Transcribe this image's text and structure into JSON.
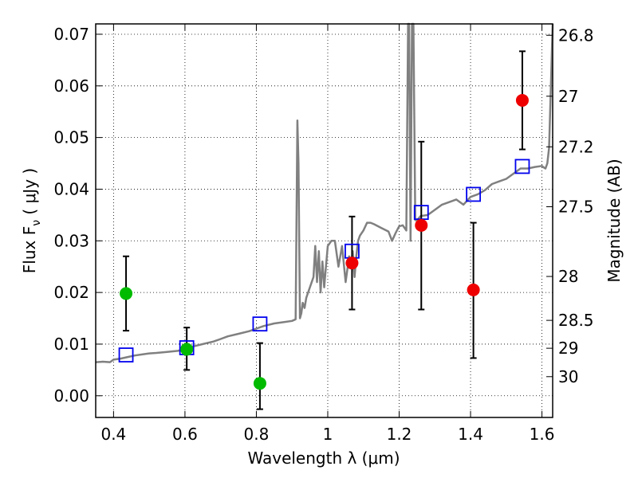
{
  "chart_data": {
    "type": "scatter",
    "xlabel": "Wavelength  λ (μm)",
    "ylabel": "Flux  F",
    "ylabel_sub": "ν",
    "ylabel_unit": "  ( μJy )",
    "y2label": "Magnitude (AB)",
    "xlim": [
      0.35,
      1.63
    ],
    "ylim": [
      -0.0042,
      0.072
    ],
    "grid": true,
    "x_ticks": [
      0.4,
      0.6,
      0.8,
      1.0,
      1.2,
      1.4,
      1.6
    ],
    "x_tick_labels": [
      "0.4",
      "0.6",
      "0.8",
      "1",
      "1.2",
      "1.4",
      "1.6"
    ],
    "y_ticks": [
      0.0,
      0.01,
      0.02,
      0.03,
      0.04,
      0.05,
      0.06,
      0.07
    ],
    "y_tick_labels": [
      "0.00",
      "0.01",
      "0.02",
      "0.03",
      "0.04",
      "0.05",
      "0.06",
      "0.07"
    ],
    "y2_ticks": [
      {
        "label": "26.8",
        "flux": 0.0698
      },
      {
        "label": "27",
        "flux": 0.058
      },
      {
        "label": "27.2",
        "flux": 0.0482
      },
      {
        "label": "27.5",
        "flux": 0.0366
      },
      {
        "label": "28",
        "flux": 0.0231
      },
      {
        "label": "28.5",
        "flux": 0.0146
      },
      {
        "label": "29",
        "flux": 0.0092
      },
      {
        "label": "30",
        "flux": 0.0037
      }
    ],
    "colors": {
      "model": "#808080",
      "green": "#00bb00",
      "red": "#ee0000",
      "model_photometry": "#0000ee",
      "errorbar": "#000000"
    },
    "series": [
      {
        "name": "model_spectrum",
        "style": "line",
        "x": [
          0.35,
          0.37,
          0.39,
          0.4,
          0.42,
          0.44,
          0.46,
          0.48,
          0.5,
          0.52,
          0.55,
          0.58,
          0.6,
          0.62,
          0.65,
          0.68,
          0.7,
          0.72,
          0.75,
          0.78,
          0.8,
          0.82,
          0.85,
          0.88,
          0.9,
          0.91,
          0.915,
          0.918,
          0.922,
          0.926,
          0.93,
          0.935,
          0.94,
          0.95,
          0.96,
          0.965,
          0.97,
          0.975,
          0.98,
          0.985,
          0.99,
          0.995,
          1.0,
          1.01,
          1.02,
          1.03,
          1.04,
          1.05,
          1.06,
          1.065,
          1.07,
          1.075,
          1.08,
          1.085,
          1.09,
          1.1,
          1.11,
          1.12,
          1.13,
          1.15,
          1.17,
          1.18,
          1.19,
          1.2,
          1.21,
          1.22,
          1.225,
          1.228,
          1.232,
          1.236,
          1.24,
          1.245,
          1.25,
          1.26,
          1.28,
          1.3,
          1.32,
          1.34,
          1.36,
          1.38,
          1.4,
          1.42,
          1.44,
          1.46,
          1.48,
          1.5,
          1.52,
          1.54,
          1.56,
          1.58,
          1.6,
          1.605,
          1.61,
          1.615,
          1.62,
          1.625,
          1.63
        ],
        "y": [
          0.0065,
          0.0066,
          0.0065,
          0.007,
          0.0072,
          0.0075,
          0.0078,
          0.008,
          0.0082,
          0.0083,
          0.0085,
          0.0087,
          0.009,
          0.0095,
          0.01,
          0.0105,
          0.011,
          0.0115,
          0.012,
          0.0125,
          0.013,
          0.0135,
          0.014,
          0.0143,
          0.0145,
          0.0148,
          0.0533,
          0.045,
          0.015,
          0.016,
          0.018,
          0.017,
          0.019,
          0.021,
          0.023,
          0.029,
          0.022,
          0.028,
          0.02,
          0.026,
          0.021,
          0.025,
          0.029,
          0.03,
          0.03,
          0.025,
          0.029,
          0.022,
          0.027,
          0.025,
          0.028,
          0.023,
          0.027,
          0.03,
          0.031,
          0.032,
          0.0335,
          0.0335,
          0.0332,
          0.0325,
          0.0318,
          0.03,
          0.0315,
          0.0328,
          0.033,
          0.032,
          0.074,
          0.074,
          0.03,
          0.074,
          0.074,
          0.034,
          0.034,
          0.0348,
          0.035,
          0.036,
          0.037,
          0.0375,
          0.038,
          0.037,
          0.0385,
          0.039,
          0.0398,
          0.041,
          0.0415,
          0.042,
          0.043,
          0.044,
          0.044,
          0.0443,
          0.0445,
          0.0442,
          0.044,
          0.045,
          0.048,
          0.06,
          0.074
        ]
      },
      {
        "name": "observed_green",
        "style": "circle",
        "x": [
          0.435,
          0.605,
          0.81
        ],
        "y": [
          0.0198,
          0.009,
          0.0024
        ],
        "err_low": [
          0.0072,
          0.004,
          0.005
        ],
        "err_high": [
          0.0072,
          0.0042,
          0.0078
        ]
      },
      {
        "name": "observed_red",
        "style": "circle",
        "x": [
          1.068,
          1.262,
          1.408,
          1.545
        ],
        "y": [
          0.0257,
          0.033,
          0.0205,
          0.0572
        ],
        "err_low": [
          0.009,
          0.0163,
          0.0132,
          0.0095
        ],
        "err_high": [
          0.009,
          0.0162,
          0.013,
          0.0095
        ]
      },
      {
        "name": "model_photometry",
        "style": "square",
        "x": [
          0.435,
          0.605,
          0.81,
          1.068,
          1.262,
          1.408,
          1.545
        ],
        "y": [
          0.0079,
          0.0093,
          0.0139,
          0.028,
          0.0355,
          0.039,
          0.0444
        ]
      }
    ]
  }
}
